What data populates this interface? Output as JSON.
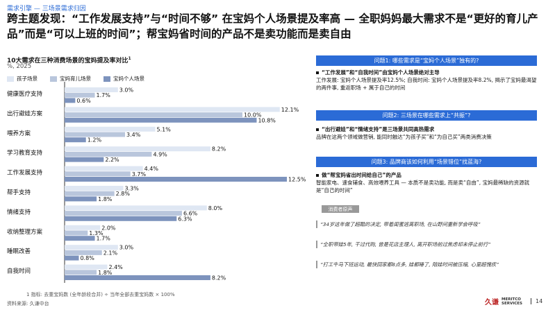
{
  "breadcrumb": "需求引擎 — 三场景需求归因",
  "headline": "跨主题发现：“工作发展支持”与“时间不够” 在宝妈个人场景提及率高 — 全职妈妈最大需求不是“更好的育儿产品”而是“可以上班的时间”；帮宝妈省时间的产品不是卖功能而是卖自由",
  "chart_title": "10大需求在三种消费场景的宝妈提及率对比",
  "chart_title_sup": "1",
  "chart_subtitle": "%, 2025",
  "legend": [
    "孩子场景",
    "宝妈育儿场景",
    "宝妈个人场景"
  ],
  "colors": {
    "s1": "#dfe7f3",
    "s2": "#b9c6dc",
    "s3": "#7d93bd",
    "accent": "#2b6bd6",
    "accent_dark": "#1b4fae"
  },
  "chart_data": {
    "type": "bar",
    "orientation": "horizontal",
    "title": "10大需求在三种消费场景的宝妈提及率对比",
    "subtitle": "%, 2025",
    "categories": [
      "健康医疗支持",
      "出行避娃方案",
      "喂养方案",
      "学习教育支持",
      "工作发展支持",
      "帮手支持",
      "情绪支持",
      "收纳整理方案",
      "睡眠改善",
      "自我时间"
    ],
    "series": [
      {
        "name": "孩子场景",
        "values": [
          3.0,
          12.1,
          5.1,
          8.2,
          4.4,
          3.3,
          8.0,
          2.0,
          3.0,
          2.4
        ]
      },
      {
        "name": "宝妈育儿场景",
        "values": [
          1.7,
          10.0,
          3.4,
          4.9,
          3.7,
          2.8,
          6.6,
          1.3,
          2.1,
          1.8
        ]
      },
      {
        "name": "宝妈个人场景",
        "values": [
          0.6,
          10.8,
          1.2,
          2.2,
          12.5,
          1.8,
          6.3,
          1.7,
          0.8,
          8.2
        ]
      }
    ],
    "value_suffix": "%",
    "xlim": [
      0,
      12.5
    ],
    "legend_position": "top-left",
    "grid": false
  },
  "footnote": "1 指标: 去重宝妈数 (全年龄段合并) ÷ 当年全部去重宝妈数 × 100%",
  "source": "资料来源: 久谦中台",
  "questions": [
    {
      "title": "问题1: 哪些需求是“宝妈个人场景”独有的?",
      "bullet": "“工作发展”和“自我时间”由宝妈个人场景绝对主导",
      "body": "工作发展: 宝妈个人场景提及率12.5%; 自我时间: 宝妈个人场景提及率8.2%, 揭示了宝妈最渴望的两件事, 重返职场 + 属于自己的时间"
    },
    {
      "title": "问题2: 三场景在哪些需求上“共振”?",
      "bullet": "“出行避娃”和“情绪支持”是三场景共同高热需求",
      "body": "品牌在这两个领域做营销, 能同时触达“为孩子买”和“为自己买”两类消费决策"
    },
    {
      "title": "问题3: 品牌商该如何利用“场景错位”找蓝海?",
      "bullet": "做“帮宝妈省出时间给自己”的产品",
      "body": "智能家电、速食辅食、高效喂养工具 — 本质不是卖功能, 而是卖“自由”, 宝妈最稀缺的资源就是“自己的时间”"
    }
  ],
  "voice_tag": "消费者原声",
  "quotes": [
    "“34岁这年做了超酷的决定, 带着闺蜜逃离职场, 在山野间重新学会呼吸”",
    "“全职带娃5年, 干过代购, 曾是花店主理人, 离开职场前过焦虑却未停止前行”",
    "“打工牛马下班运动, 最快回家都8点多, 娃都睡了, 陪娃时间被压缩, 心里超愧疚”"
  ],
  "logo_cn": "久谦",
  "logo_en_1": "MERITCO",
  "logo_en_2": "SERVICES",
  "page_number": "14"
}
